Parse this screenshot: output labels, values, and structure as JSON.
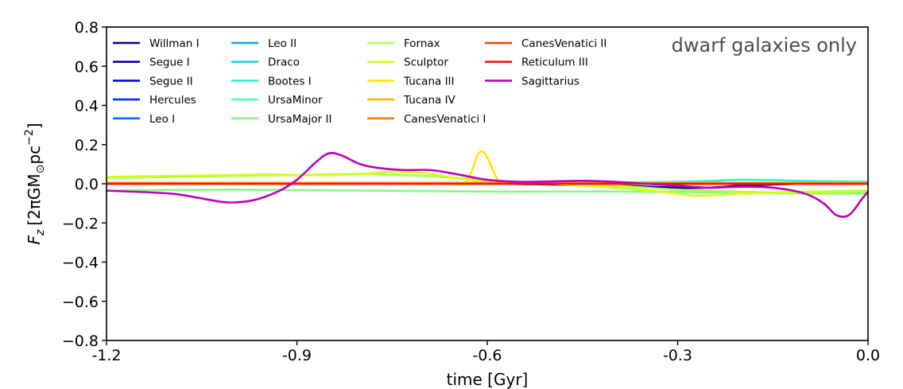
{
  "chart_data": {
    "type": "line",
    "title": "",
    "annotation": "dwarf galaxies only",
    "xlabel": "time [Gyr]",
    "ylabel_main": "F",
    "ylabel_sub": "z",
    "ylabel_units": "[2πGM",
    "ylabel_sun": "⊙",
    "ylabel_pc": "pc",
    "ylabel_exp": "−2",
    "ylabel_close": "]",
    "xlim": [
      -1.2,
      0.0
    ],
    "ylim": [
      -0.8,
      0.8
    ],
    "xticks": [
      -1.2,
      -0.9,
      -0.6,
      -0.3,
      0.0
    ],
    "xtick_labels": [
      "-1.2",
      "-0.9",
      "-0.6",
      "-0.3",
      "0.0"
    ],
    "yticks": [
      -0.8,
      -0.6,
      -0.4,
      -0.2,
      0.0,
      0.2,
      0.4,
      0.6,
      0.8
    ],
    "ytick_labels": [
      "−0.8",
      "−0.6",
      "−0.4",
      "−0.2",
      "0.0",
      "0.2",
      "0.4",
      "0.6",
      "0.8"
    ],
    "legend_location": "top-left",
    "series": [
      {
        "name": "Willman I",
        "color": "#000080",
        "x": [
          -1.2,
          -0.9,
          -0.6,
          -0.4,
          -0.3,
          -0.25,
          -0.2,
          -0.1,
          0.0
        ],
        "y": [
          0.0,
          0.0,
          0.0,
          -0.01,
          -0.02,
          -0.02,
          -0.01,
          0.0,
          0.0
        ]
      },
      {
        "name": "Segue I",
        "color": "#0000b2",
        "x": [
          -1.2,
          -0.6,
          0.0
        ],
        "y": [
          0.0,
          0.0,
          0.0
        ]
      },
      {
        "name": "Segue II",
        "color": "#0000f0",
        "x": [
          -1.2,
          -0.6,
          0.0
        ],
        "y": [
          0.005,
          0.005,
          0.005
        ]
      },
      {
        "name": "Hercules",
        "color": "#0030ff",
        "x": [
          -1.2,
          -0.6,
          0.0
        ],
        "y": [
          0.0,
          0.0,
          0.0
        ]
      },
      {
        "name": "Leo I",
        "color": "#0070ff",
        "x": [
          -1.2,
          -0.6,
          0.0
        ],
        "y": [
          0.0,
          0.0,
          0.0
        ]
      },
      {
        "name": "Leo II",
        "color": "#00a8ff",
        "x": [
          -1.2,
          -0.6,
          0.0
        ],
        "y": [
          0.0,
          0.0,
          0.0
        ]
      },
      {
        "name": "Draco",
        "color": "#1ad8e6",
        "x": [
          -1.2,
          -0.6,
          -0.3,
          0.0
        ],
        "y": [
          0.0,
          0.005,
          0.005,
          0.005
        ]
      },
      {
        "name": "Bootes I",
        "color": "#30f0d0",
        "x": [
          -1.2,
          -0.6,
          -0.3,
          -0.2,
          -0.1,
          0.0
        ],
        "y": [
          0.0,
          0.0,
          0.01,
          0.02,
          0.015,
          0.01
        ]
      },
      {
        "name": "UrsaMinor",
        "color": "#4dffad",
        "x": [
          -1.2,
          -0.6,
          0.0
        ],
        "y": [
          0.0,
          0.0,
          0.0
        ]
      },
      {
        "name": "UrsaMajor II",
        "color": "#80ff80",
        "x": [
          -1.2,
          -1.0,
          -0.8,
          -0.6,
          -0.4,
          -0.2,
          -0.1,
          0.0
        ],
        "y": [
          -0.035,
          -0.03,
          -0.035,
          -0.04,
          -0.04,
          -0.045,
          -0.05,
          -0.05
        ]
      },
      {
        "name": "Fornax",
        "color": "#adff4d",
        "x": [
          -1.2,
          -1.0,
          -0.9,
          -0.8,
          -0.7,
          -0.6,
          -0.5,
          -0.4,
          -0.3,
          -0.2,
          -0.1,
          0.0
        ],
        "y": [
          0.03,
          0.04,
          0.045,
          0.05,
          0.04,
          0.02,
          0.0,
          -0.01,
          -0.03,
          -0.04,
          -0.05,
          -0.04
        ]
      },
      {
        "name": "Sculptor",
        "color": "#d4ff1a",
        "x": [
          -1.2,
          -1.1,
          -1.0,
          -0.95,
          -0.9,
          -0.85,
          -0.8,
          -0.75,
          -0.7,
          -0.65,
          -0.6,
          -0.5,
          -0.4,
          -0.3,
          -0.28,
          -0.25,
          -0.2,
          -0.1,
          0.0
        ],
        "y": [
          0.035,
          0.04,
          0.045,
          0.048,
          0.045,
          0.045,
          0.05,
          0.06,
          0.055,
          0.03,
          0.01,
          0.0,
          -0.02,
          -0.05,
          -0.06,
          -0.06,
          -0.05,
          -0.04,
          -0.035
        ]
      },
      {
        "name": "Tucana III",
        "color": "#ffe600",
        "x": [
          -1.2,
          -0.7,
          -0.64,
          -0.625,
          -0.615,
          -0.605,
          -0.595,
          -0.58,
          -0.55,
          -0.3,
          0.0
        ],
        "y": [
          0.0,
          0.0,
          0.0,
          0.06,
          0.15,
          0.16,
          0.1,
          0.01,
          0.0,
          0.0,
          0.0
        ]
      },
      {
        "name": "Tucana IV",
        "color": "#ffb000",
        "x": [
          -1.2,
          -0.6,
          0.0
        ],
        "y": [
          0.005,
          0.005,
          0.005
        ]
      },
      {
        "name": "CanesVenatici I",
        "color": "#ff7800",
        "x": [
          -1.2,
          -0.6,
          0.0
        ],
        "y": [
          0.0,
          0.0,
          0.0
        ]
      },
      {
        "name": "CanesVenatici II",
        "color": "#ff4000",
        "x": [
          -1.2,
          -0.6,
          0.0
        ],
        "y": [
          0.0,
          0.0,
          0.0
        ]
      },
      {
        "name": "Reticulum III",
        "color": "#ff1010",
        "x": [
          -1.2,
          -0.6,
          0.0
        ],
        "y": [
          0.0,
          0.0,
          0.0
        ]
      },
      {
        "name": "Sagittarius",
        "color": "#c000c0",
        "x": [
          -1.2,
          -1.1,
          -1.05,
          -1.01,
          -0.97,
          -0.93,
          -0.9,
          -0.87,
          -0.85,
          -0.83,
          -0.8,
          -0.77,
          -0.73,
          -0.69,
          -0.65,
          -0.6,
          -0.55,
          -0.5,
          -0.45,
          -0.4,
          -0.35,
          -0.3,
          -0.25,
          -0.2,
          -0.15,
          -0.1,
          -0.07,
          -0.05,
          -0.03,
          -0.01,
          0.0
        ],
        "y": [
          -0.035,
          -0.05,
          -0.075,
          -0.095,
          -0.085,
          -0.04,
          0.02,
          0.11,
          0.155,
          0.145,
          0.1,
          0.08,
          0.07,
          0.07,
          0.05,
          0.02,
          0.01,
          0.012,
          0.015,
          0.01,
          0.0,
          -0.01,
          -0.02,
          -0.015,
          -0.02,
          -0.05,
          -0.1,
          -0.16,
          -0.16,
          -0.08,
          -0.04
        ]
      }
    ]
  }
}
